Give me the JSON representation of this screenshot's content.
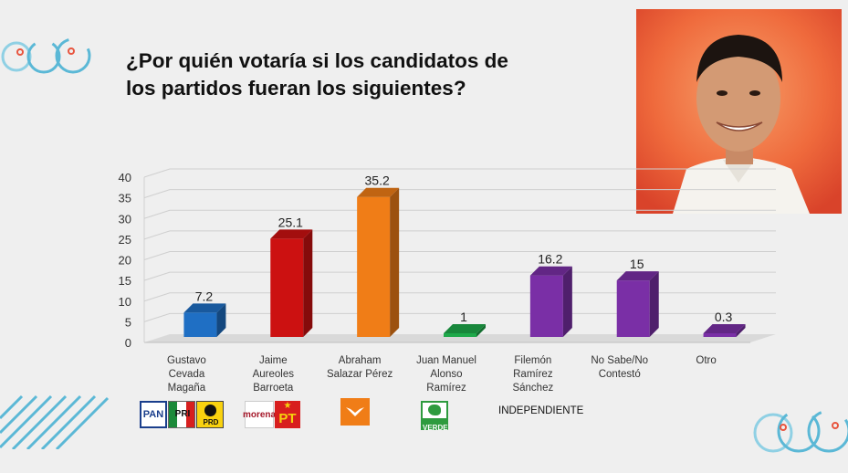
{
  "chart_data": {
    "type": "bar",
    "title": "¿Por quién votaría si los candidatos de los partidos fueran los siguientes?",
    "categories": [
      [
        "Gustavo",
        "Cevada",
        "Magaña"
      ],
      [
        "Jaime",
        "Aureoles",
        "Barroeta"
      ],
      [
        "Abraham",
        "Salazar Pérez"
      ],
      [
        "Juan Manuel",
        "Alonso",
        "Ramírez"
      ],
      [
        "Filemón",
        "Ramírez",
        "Sánchez"
      ],
      [
        "No Sabe/No",
        "Contestó"
      ],
      [
        "Otro"
      ]
    ],
    "values": [
      7.2,
      25.1,
      35.2,
      1,
      16.2,
      15,
      0.3
    ],
    "value_labels": [
      "7.2",
      "25.1",
      "35.2",
      "1",
      "16.2",
      "15",
      "0.3"
    ],
    "colors": [
      "#1f6fc4",
      "#cc1111",
      "#f07d17",
      "#1ea94a",
      "#7a2fa6",
      "#7a2fa6",
      "#7a2fa6"
    ],
    "ylim": [
      0,
      40
    ],
    "yticks": [
      0,
      5,
      10,
      15,
      20,
      25,
      30,
      35,
      40
    ],
    "grid": true,
    "xlabel": "",
    "ylabel": ""
  },
  "party_logos": {
    "pan": "PAN",
    "pri": "PRI",
    "prd": "PRD",
    "morena": "morena",
    "pt": "PT",
    "verde": "VERDE"
  },
  "independent_label": "INDEPENDIENTE",
  "colors": {
    "background": "#efefef",
    "decor_blue": "#5bb8d6",
    "decor_red": "#e8553f"
  }
}
